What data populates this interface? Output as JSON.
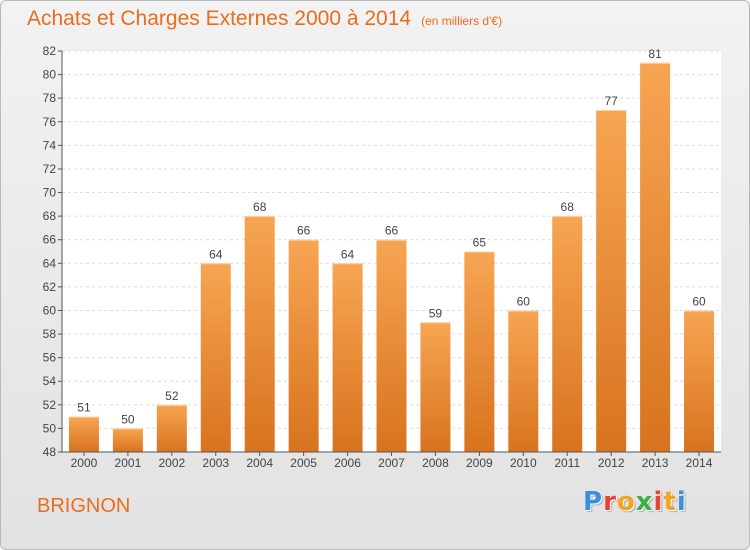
{
  "title": "Achats et Charges Externes 2000 à 2014",
  "subtitle": "(en milliers d'€)",
  "commune": "BRIGNON",
  "brand": {
    "letters": [
      "P",
      "r",
      "o",
      "x",
      "i",
      "t",
      "i"
    ],
    "colors": [
      "#3c8ee0",
      "#e8432e",
      "#f3a421",
      "#3fae49",
      "#e8432e",
      "#f3a421",
      "#3c8ee0"
    ]
  },
  "colors": {
    "bar_top": "#f7a553",
    "bar_bottom": "#d8731e",
    "accent": "#ea6d1d"
  },
  "chart_data": {
    "type": "bar",
    "categories": [
      "2000",
      "2001",
      "2002",
      "2003",
      "2004",
      "2005",
      "2006",
      "2007",
      "2008",
      "2009",
      "2010",
      "2011",
      "2012",
      "2013",
      "2014"
    ],
    "values": [
      51,
      50,
      52,
      64,
      68,
      66,
      64,
      66,
      59,
      65,
      60,
      68,
      77,
      81,
      60
    ],
    "title": "Achats et Charges Externes 2000 à 2014",
    "ylim": [
      48,
      82
    ],
    "yticks": [
      48,
      50,
      52,
      54,
      56,
      58,
      60,
      62,
      64,
      66,
      68,
      70,
      72,
      74,
      76,
      78,
      80,
      82
    ],
    "grid": true,
    "data_labels": true
  }
}
